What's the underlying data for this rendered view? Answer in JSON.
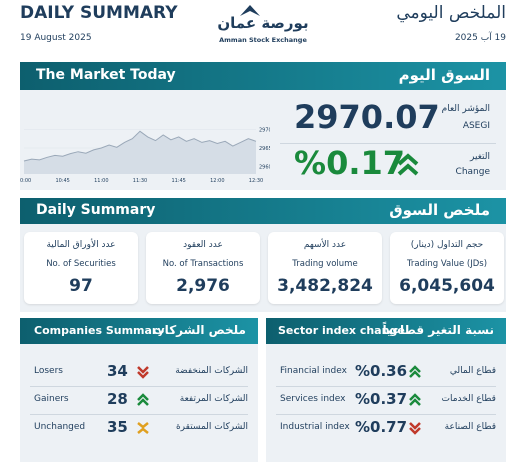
{
  "header": {
    "title": "DAILY SUMMARY",
    "date": "19 August 2025",
    "logo_ar": "بورصة عمان",
    "logo_en": "Amman Stock Exchange",
    "title_ar": "الملخص اليومي",
    "date_ar": "19 آب 2025"
  },
  "market_today": {
    "title": "The Market Today",
    "title_ar": "السوق اليوم",
    "index_label_ar": "المؤشر العام",
    "index_label": "ASEGI",
    "index_value": "2970.07",
    "change_label_ar": "التغير",
    "change_label": "Change",
    "change_value": "%0.17"
  },
  "chart_data": {
    "type": "line",
    "categories": [
      "10:00",
      null,
      null,
      null,
      null,
      "10:45",
      null,
      null,
      null,
      null,
      "11:00",
      null,
      null,
      null,
      null,
      "11:30",
      null,
      null,
      null,
      null,
      "11:45",
      null,
      null,
      null,
      null,
      "12:00",
      null,
      null,
      null,
      null,
      "12:30"
    ],
    "values": [
      2961.5,
      2962,
      2961.8,
      2962.5,
      2963,
      2962.8,
      2963.5,
      2964,
      2963.6,
      2964.5,
      2965,
      2965.8,
      2965.2,
      2966.5,
      2967.5,
      2969.5,
      2968,
      2967,
      2968.5,
      2967.2,
      2968,
      2966.8,
      2967.5,
      2966.5,
      2967,
      2966.2,
      2966.8,
      2965.5,
      2966.5,
      2967.5,
      2966.8
    ],
    "color": "#9aa8b8",
    "ylim": [
      2958,
      2972
    ],
    "yticks": [
      2960,
      2965,
      2970
    ]
  },
  "daily_summary": {
    "title": "Daily Summary",
    "title_ar": "ملخص السوق",
    "cards": [
      {
        "label_ar": "عدد الأوراق المالية",
        "label": "No. of Securities",
        "value": "97"
      },
      {
        "label_ar": "عدد العقود",
        "label": "No. of Transactions",
        "value": "2,976"
      },
      {
        "label_ar": "عدد الأسهم",
        "label": "Trading volume",
        "value": "3,482,824"
      },
      {
        "label_ar": "حجم التداول (دينار)",
        "label": "Trading Value (JDs)",
        "value": "6,045,604"
      }
    ]
  },
  "companies": {
    "title": "Companies Summary",
    "title_ar": "ملخص الشركات",
    "rows": [
      {
        "label": "Losers",
        "value": "34",
        "label_ar": "الشركات المنخفضة"
      },
      {
        "label": "Gainers",
        "value": "28",
        "label_ar": "الشركات المرتفعة"
      },
      {
        "label": "Unchanged",
        "value": "35",
        "label_ar": "الشركات المستقرة"
      }
    ]
  },
  "sectors": {
    "title": "Sector index change",
    "title_ar": "نسبة التغير قطاعياً",
    "rows": [
      {
        "label": "Financial index",
        "value": "%0.36",
        "label_ar": "قطاع المالي"
      },
      {
        "label": "Services index",
        "value": "%0.37",
        "label_ar": "قطاع الخدمات"
      },
      {
        "label": "Industrial index",
        "value": "%0.77",
        "label_ar": "قطاع الصناعة"
      }
    ]
  }
}
